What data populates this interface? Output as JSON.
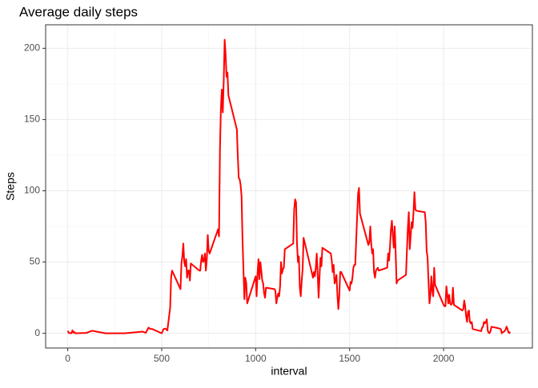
{
  "chart_data": {
    "type": "line",
    "title": "Average daily steps",
    "x_label": "interval",
    "y_label": "Steps",
    "x": [
      0,
      5,
      10,
      15,
      20,
      25,
      30,
      35,
      40,
      100,
      130,
      200,
      230,
      300,
      320,
      400,
      415,
      430,
      440,
      450,
      500,
      510,
      520,
      530,
      545,
      550,
      555,
      600,
      605,
      610,
      615,
      620,
      625,
      630,
      635,
      640,
      645,
      650,
      655,
      700,
      705,
      710,
      715,
      720,
      725,
      730,
      735,
      740,
      745,
      750,
      755,
      800,
      805,
      810,
      815,
      820,
      825,
      830,
      835,
      840,
      845,
      850,
      855,
      900,
      905,
      910,
      915,
      920,
      925,
      930,
      935,
      940,
      945,
      950,
      955,
      1000,
      1005,
      1010,
      1015,
      1020,
      1025,
      1030,
      1035,
      1040,
      1045,
      1050,
      1055,
      1100,
      1105,
      1110,
      1115,
      1120,
      1125,
      1130,
      1135,
      1140,
      1145,
      1150,
      1155,
      1200,
      1205,
      1210,
      1215,
      1220,
      1225,
      1230,
      1235,
      1240,
      1245,
      1250,
      1255,
      1300,
      1305,
      1310,
      1315,
      1320,
      1325,
      1330,
      1335,
      1340,
      1345,
      1350,
      1355,
      1400,
      1405,
      1410,
      1415,
      1420,
      1425,
      1430,
      1435,
      1440,
      1445,
      1450,
      1455,
      1500,
      1505,
      1510,
      1515,
      1520,
      1525,
      1530,
      1535,
      1540,
      1545,
      1550,
      1555,
      1600,
      1605,
      1610,
      1615,
      1620,
      1625,
      1630,
      1635,
      1640,
      1645,
      1650,
      1655,
      1700,
      1705,
      1710,
      1715,
      1720,
      1725,
      1730,
      1735,
      1740,
      1745,
      1750,
      1755,
      1800,
      1805,
      1810,
      1815,
      1820,
      1825,
      1830,
      1835,
      1840,
      1845,
      1850,
      1855,
      1900,
      1905,
      1910,
      1915,
      1920,
      1925,
      1930,
      1935,
      1940,
      1945,
      1950,
      1955,
      2000,
      2005,
      2010,
      2015,
      2020,
      2025,
      2030,
      2035,
      2040,
      2045,
      2050,
      2055,
      2100,
      2105,
      2110,
      2115,
      2120,
      2125,
      2130,
      2135,
      2140,
      2145,
      2150,
      2155,
      2200,
      2205,
      2210,
      2215,
      2220,
      2225,
      2230,
      2235,
      2240,
      2245,
      2250,
      2255,
      2300,
      2305,
      2310,
      2315,
      2320,
      2325,
      2330,
      2335,
      2340,
      2345,
      2350,
      2355
    ],
    "series": [
      {
        "name": "Steps",
        "color": "#ff0000",
        "values": [
          1.7,
          0.3,
          0.1,
          0.2,
          0.1,
          2.1,
          0.5,
          0.9,
          0,
          0.3,
          1.8,
          0,
          0,
          0,
          0.2,
          1.2,
          0.3,
          4,
          3,
          3,
          0,
          3,
          3.3,
          2,
          18,
          39,
          44,
          31,
          49,
          54,
          63,
          50,
          47,
          52,
          39,
          44,
          44,
          37,
          49,
          44,
          44,
          51,
          55,
          50,
          51,
          56,
          44,
          52,
          69,
          58,
          56,
          73,
          68,
          129,
          158,
          171,
          155,
          177,
          206,
          196,
          180,
          183,
          167,
          143,
          124,
          109,
          108,
          104,
          96,
          66,
          45,
          24,
          39,
          35,
          21,
          40,
          26,
          42,
          52,
          38,
          50,
          44,
          37,
          35,
          28,
          25,
          32,
          31,
          30,
          21,
          25,
          28,
          26,
          33,
          50,
          42,
          45,
          46,
          59,
          63,
          87,
          94,
          92,
          63,
          50,
          54,
          32,
          26,
          37,
          45,
          67,
          42,
          39,
          43,
          40,
          46,
          56,
          42,
          25,
          40,
          53,
          47,
          60,
          56,
          51,
          43,
          48,
          35,
          37,
          41,
          27,
          17,
          26,
          43,
          43,
          30,
          36,
          35,
          39,
          46,
          48,
          48,
          65,
          82,
          98,
          102,
          84,
          62,
          64,
          75,
          63,
          56,
          59,
          43,
          39,
          44,
          45,
          46,
          44,
          46,
          56,
          51,
          61,
          73,
          79,
          69,
          60,
          75,
          57,
          35,
          37,
          41,
          58,
          74,
          85,
          59,
          68,
          78,
          74,
          85,
          99,
          87,
          86,
          85,
          78,
          58,
          53,
          36,
          21,
          27,
          40,
          30,
          26,
          46,
          34,
          20,
          19,
          19,
          33,
          27,
          21,
          27,
          21,
          20,
          21,
          32,
          20,
          16,
          17,
          23,
          19,
          12,
          8,
          15,
          16,
          8,
          7,
          8,
          3,
          1.5,
          4,
          4.7,
          8,
          7,
          8,
          9.8,
          2,
          0.4,
          0.1,
          1.6,
          4.6,
          3.3,
          2.8,
          0,
          0.8,
          1,
          1.6,
          2.6,
          4.7,
          3.3,
          0.6,
          0.2,
          1.1
        ]
      }
    ],
    "xlim": [
      -117.75,
      2472.75
    ],
    "xticks": [
      0,
      500,
      1000,
      1500,
      2000
    ],
    "ylim": [
      -10.31,
      216.48
    ],
    "yticks": [
      0,
      50,
      100,
      150,
      200
    ],
    "grid": true
  }
}
